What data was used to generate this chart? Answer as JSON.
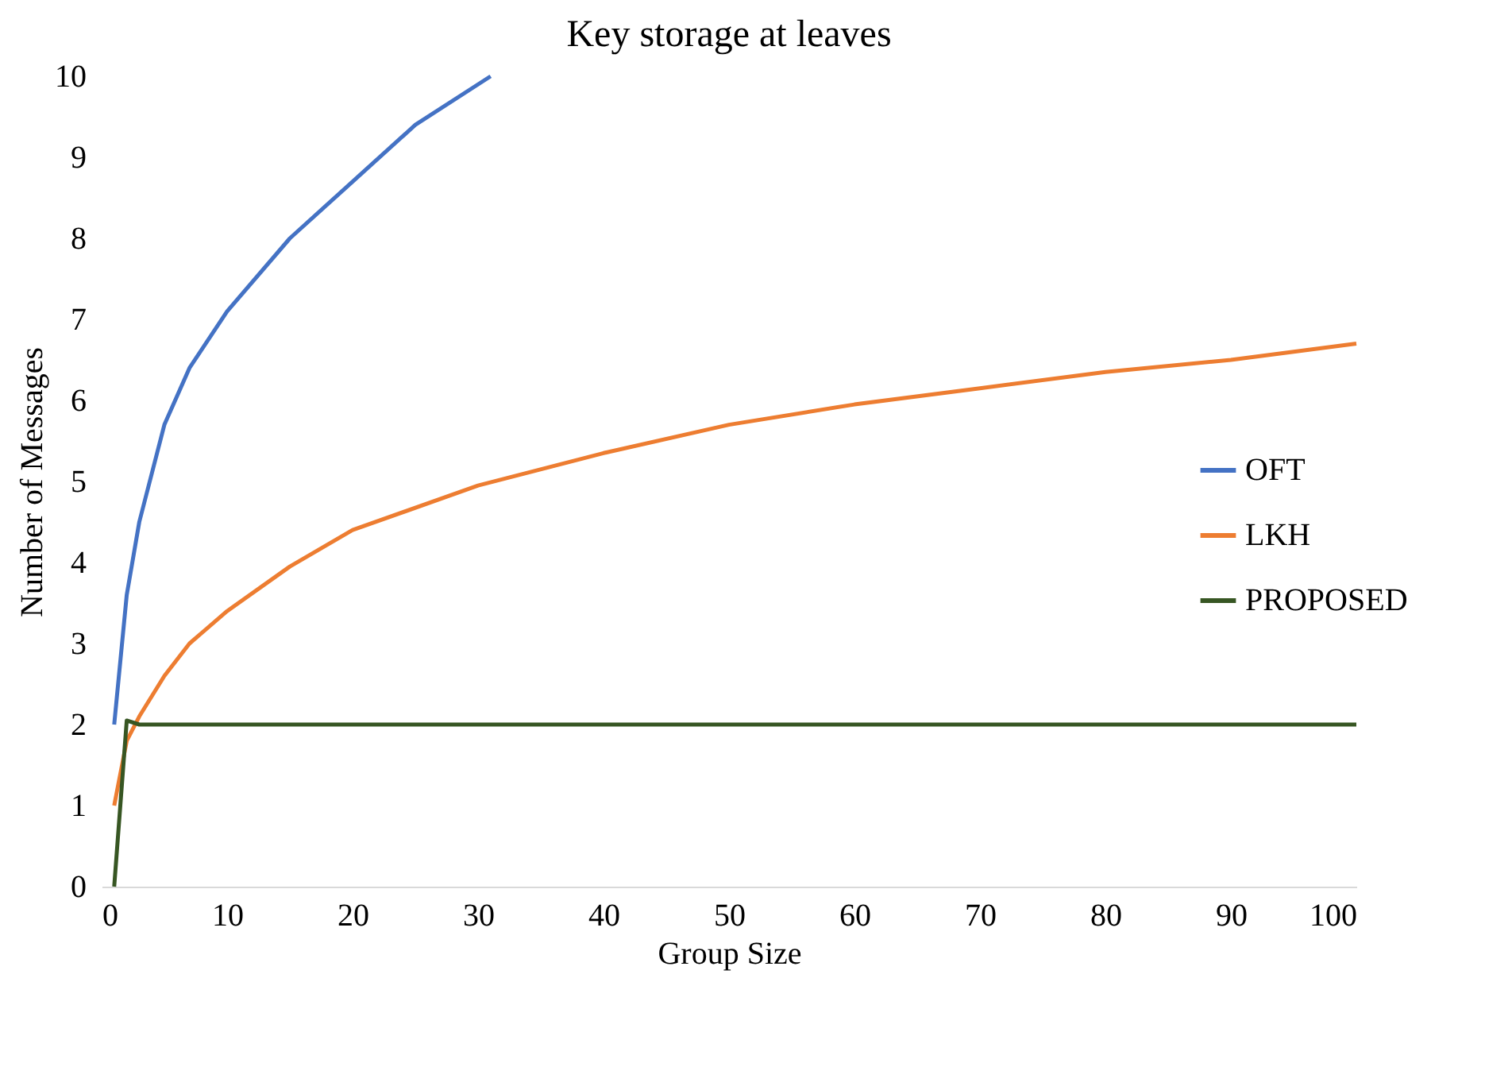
{
  "chart_data": {
    "type": "line",
    "title": "Key storage at leaves",
    "xlabel": "Group Size",
    "ylabel": "Number of Messages",
    "xlim": [
      0,
      100
    ],
    "xticks": [
      0,
      10,
      20,
      30,
      40,
      50,
      60,
      70,
      80,
      90,
      100
    ],
    "ylim": [
      0,
      10
    ],
    "yticks": [
      0,
      1,
      2,
      3,
      4,
      5,
      6,
      7,
      8,
      9,
      10
    ],
    "grid": false,
    "legend": "right",
    "marker": "none",
    "line_style": "solid",
    "series": [
      {
        "name": "OFT",
        "color": "#4472c4",
        "x": [
          1,
          2,
          3,
          5,
          7,
          10,
          15,
          20,
          25,
          31
        ],
        "values": [
          2,
          3.6,
          4.5,
          5.7,
          6.4,
          7.1,
          8.0,
          8.7,
          9.4,
          10
        ]
      },
      {
        "name": "LKH",
        "color": "#ed7d31",
        "x": [
          1,
          2,
          3,
          5,
          7,
          10,
          15,
          20,
          30,
          40,
          50,
          60,
          70,
          80,
          90,
          100
        ],
        "values": [
          1,
          1.8,
          2.1,
          2.6,
          3.0,
          3.4,
          3.95,
          4.4,
          4.95,
          5.35,
          5.7,
          5.95,
          6.15,
          6.35,
          6.5,
          6.7
        ]
      },
      {
        "name": "PROPOSED",
        "color": "#375623",
        "x": [
          1,
          2,
          3,
          100
        ],
        "values": [
          0,
          2.05,
          2,
          2
        ]
      }
    ]
  }
}
